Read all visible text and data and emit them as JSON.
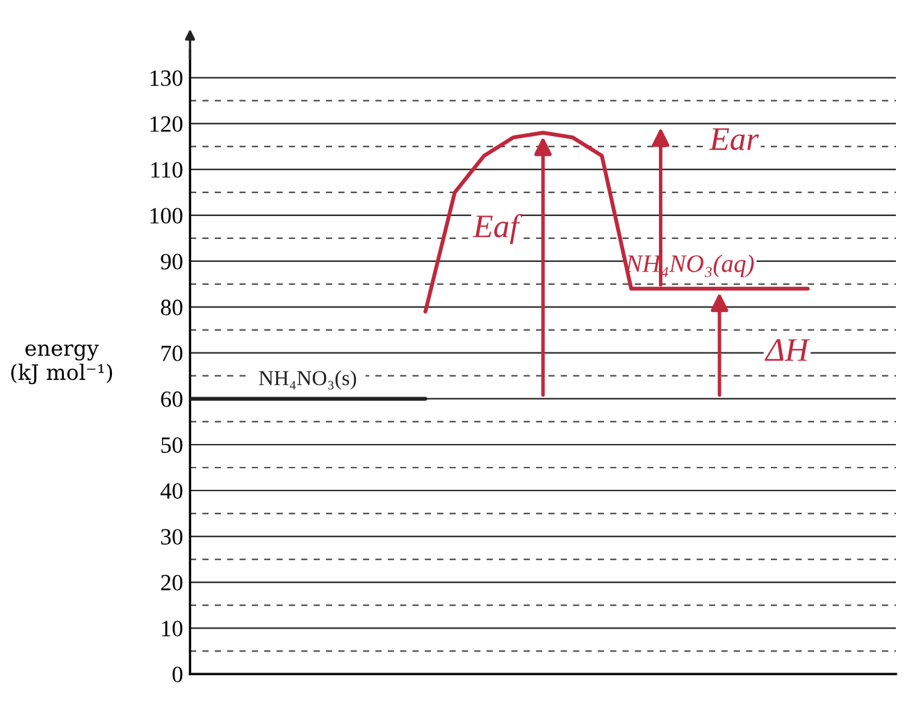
{
  "chart_data": {
    "type": "line",
    "ylabel": "energy\n(kJ mol⁻¹)",
    "categories": [
      null,
      null,
      null,
      null,
      null,
      null,
      null,
      null,
      null,
      null,
      null,
      null,
      null,
      null,
      null,
      null,
      null,
      null,
      null,
      null,
      null,
      null,
      null,
      null,
      null
    ],
    "series": [
      {
        "name": "NH₄NO₃(s)",
        "color": "#222222",
        "values": [
          60,
          60,
          60,
          60,
          60,
          60,
          60,
          60,
          60,
          null,
          null,
          null,
          null,
          null,
          null,
          null,
          null,
          null,
          null,
          null,
          null,
          null,
          null,
          null,
          null
        ]
      },
      {
        "name": "NH₄NO₃(aq)",
        "color": "#c0283c",
        "values": [
          null,
          null,
          null,
          null,
          null,
          null,
          null,
          null,
          79,
          105,
          113,
          117,
          118,
          117,
          113,
          84,
          84,
          84,
          84,
          84,
          84,
          84,
          null,
          null,
          null
        ]
      }
    ],
    "annotations": [
      "Eaf",
      "Ear",
      "ΔH"
    ],
    "ylim": [
      0,
      136
    ],
    "yticks": [
      0,
      {
        "value": 5,
        "label": null
      },
      10,
      {
        "value": 15,
        "label": null
      },
      20,
      {
        "value": 25,
        "label": null
      },
      30,
      {
        "value": 35,
        "label": null
      },
      40,
      {
        "value": 45,
        "label": null
      },
      50,
      {
        "value": 55,
        "label": null
      },
      60,
      {
        "value": 65,
        "label": null
      },
      70,
      {
        "value": 75,
        "label": null
      },
      80,
      {
        "value": 85,
        "label": null
      },
      90,
      {
        "value": 95,
        "label": null
      },
      100,
      {
        "value": 105,
        "label": null
      },
      110,
      {
        "value": 115,
        "label": null
      },
      120,
      {
        "value": 125,
        "label": null
      },
      130
    ],
    "grid": "y",
    "tick_labels": "y",
    "legend": false,
    "marker": "none",
    "line_style": "solid"
  }
}
